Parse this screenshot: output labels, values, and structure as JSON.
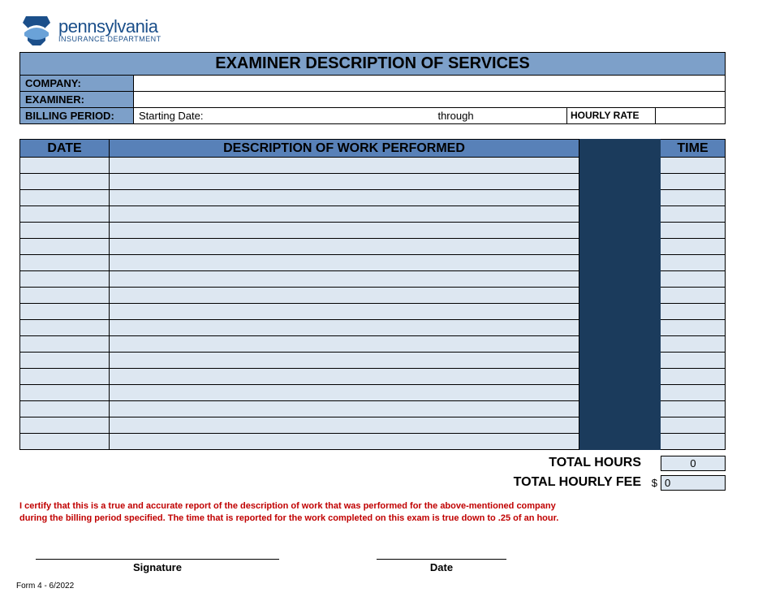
{
  "colors": {
    "header_blue": "#7da0c9",
    "column_blue": "#5881b8",
    "gap_navy": "#1b3b5c",
    "row_fill": "#dde7f1",
    "cert_red": "#c00000",
    "brand_blue": "#1b4f8a"
  },
  "logo": {
    "word": "pennsylvania",
    "dept": "INSURANCE DEPARTMENT"
  },
  "title": "EXAMINER DESCRIPTION OF SERVICES",
  "info": {
    "company_label": "COMPANY:",
    "company_value": "",
    "examiner_label": "EXAMINER:",
    "examiner_value": "",
    "billing_label": "BILLING PERIOD:",
    "starting_date_label": "Starting Date:",
    "starting_date_value": "",
    "through_label": "through",
    "through_value": "",
    "hourly_rate_label": "HOURLY RATE",
    "hourly_rate_value": ""
  },
  "ledger": {
    "headers": {
      "date": "DATE",
      "desc": "DESCRIPTION OF WORK PERFORMED",
      "time": "TIME"
    },
    "row_count": 18,
    "rows": [
      {
        "date": "",
        "desc": "",
        "time": ""
      },
      {
        "date": "",
        "desc": "",
        "time": ""
      },
      {
        "date": "",
        "desc": "",
        "time": ""
      },
      {
        "date": "",
        "desc": "",
        "time": ""
      },
      {
        "date": "",
        "desc": "",
        "time": ""
      },
      {
        "date": "",
        "desc": "",
        "time": ""
      },
      {
        "date": "",
        "desc": "",
        "time": ""
      },
      {
        "date": "",
        "desc": "",
        "time": ""
      },
      {
        "date": "",
        "desc": "",
        "time": ""
      },
      {
        "date": "",
        "desc": "",
        "time": ""
      },
      {
        "date": "",
        "desc": "",
        "time": ""
      },
      {
        "date": "",
        "desc": "",
        "time": ""
      },
      {
        "date": "",
        "desc": "",
        "time": ""
      },
      {
        "date": "",
        "desc": "",
        "time": ""
      },
      {
        "date": "",
        "desc": "",
        "time": ""
      },
      {
        "date": "",
        "desc": "",
        "time": ""
      },
      {
        "date": "",
        "desc": "",
        "time": ""
      },
      {
        "date": "",
        "desc": "",
        "time": ""
      }
    ]
  },
  "totals": {
    "hours_label": "TOTAL HOURS",
    "hours_value": "0",
    "fee_label": "TOTAL HOURLY FEE",
    "fee_currency": "$",
    "fee_value": "0"
  },
  "certification": "I certify that this is a true and accurate report of the description of work that was performed for the above-mentioned company during the billing period specified.  The time that is reported for the work completed on this exam is true down to .25 of an hour.",
  "signature": {
    "sig_label": "Signature",
    "date_label": "Date"
  },
  "form_id": "Form 4 - 6/2022"
}
